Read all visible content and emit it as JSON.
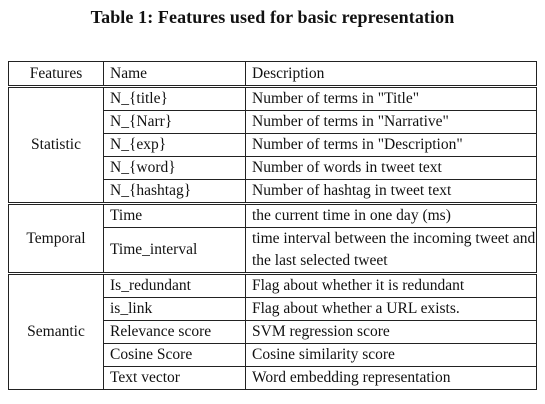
{
  "caption": "Table 1: Features used for basic representation",
  "table": {
    "headers": [
      "Features",
      "Name",
      "Description"
    ],
    "groups": [
      {
        "feature": "Statistic",
        "rows": [
          {
            "name": "N_{title}",
            "description": "Number of terms in \"Title\""
          },
          {
            "name": "N_{Narr}",
            "description": "Number of terms in \"Narrative\""
          },
          {
            "name": "N_{exp}",
            "description": "Number of terms in \"Description\""
          },
          {
            "name": "N_{word}",
            "description": "Number of words in tweet text"
          },
          {
            "name": "N_{hashtag}",
            "description": "Number of hashtag in tweet text"
          }
        ]
      },
      {
        "feature": "Temporal",
        "rows": [
          {
            "name": "Time",
            "description": "the current time in one day (ms)"
          },
          {
            "name": "Time_interval",
            "description": "time interval between the incoming tweet and the last selected tweet"
          }
        ]
      },
      {
        "feature": "Semantic",
        "rows": [
          {
            "name": "Is_redundant",
            "description": "Flag about whether it is redundant"
          },
          {
            "name": "is_link",
            "description": "Flag about whether a URL exists."
          },
          {
            "name": "Relevance score",
            "description": "SVM regression score"
          },
          {
            "name": "Cosine Score",
            "description": "Cosine similarity score"
          },
          {
            "name": "Text vector",
            "description": "Word embedding representation"
          }
        ]
      }
    ]
  }
}
